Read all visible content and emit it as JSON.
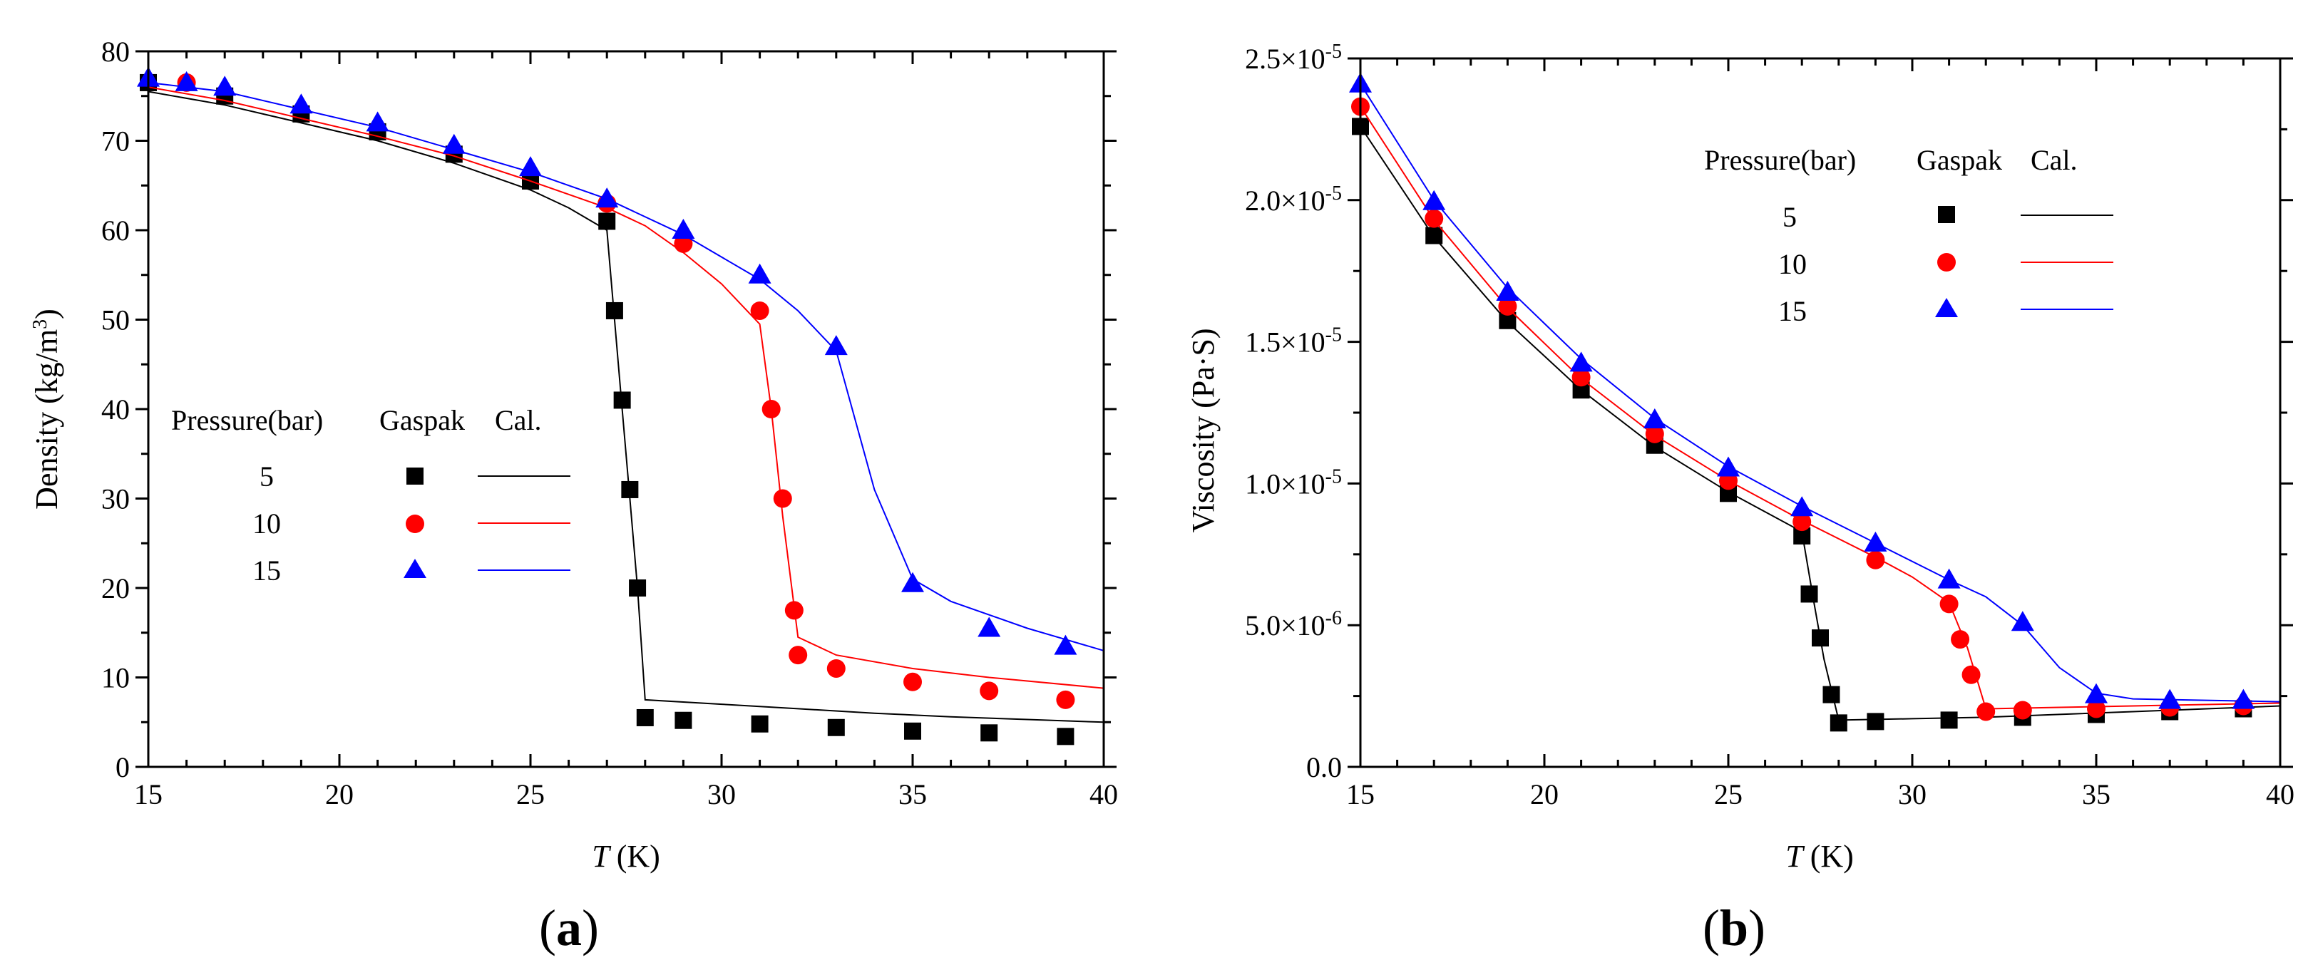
{
  "chart_data": [
    {
      "panel_label": "a",
      "type": "scatter+line",
      "xlabel": "(K)",
      "xlabel_italic": "T",
      "ylabel": "Density (kg/m",
      "ylabel_sup": "3",
      "ylabel_close": ")",
      "xlim": [
        15,
        40
      ],
      "ylim": [
        0,
        80
      ],
      "x_ticks": [
        "15",
        "20",
        "25",
        "30",
        "35",
        "40"
      ],
      "x_tick_values": [
        15,
        20,
        25,
        30,
        35,
        40
      ],
      "y_ticks": [
        "0",
        "10",
        "20",
        "30",
        "40",
        "50",
        "60",
        "70",
        "80"
      ],
      "y_tick_values": [
        0,
        10,
        20,
        30,
        40,
        50,
        60,
        70,
        80
      ],
      "legend": {
        "header_pressure": "Pressure(bar)",
        "header_gaspak": "Gaspak",
        "header_cal": "Cal.",
        "entries": [
          "5",
          "10",
          "15"
        ]
      },
      "series": [
        {
          "name": "5",
          "color": "#000000",
          "marker": "square",
          "points_x": [
            15,
            17,
            19,
            21,
            23,
            25,
            27,
            27.2,
            27.4,
            27.6,
            27.8,
            28,
            29,
            31,
            33,
            35,
            37,
            39
          ],
          "points_y": [
            76.5,
            75,
            73,
            71,
            68.5,
            65.5,
            61,
            51,
            41,
            31,
            20,
            5.5,
            5.2,
            4.8,
            4.4,
            4.0,
            3.8,
            3.4
          ],
          "line_x": [
            15,
            17,
            19,
            21,
            23,
            25,
            26,
            27,
            27.2,
            27.4,
            27.6,
            27.8,
            28,
            30,
            32,
            34,
            36,
            38,
            40
          ],
          "line_y": [
            75.5,
            74,
            72,
            70,
            67.5,
            64.5,
            62.5,
            60,
            50,
            40,
            30,
            20,
            7.5,
            7,
            6.5,
            6,
            5.6,
            5.3,
            5.0
          ]
        },
        {
          "name": "10",
          "color": "#ff0000",
          "marker": "circle",
          "points_x": [
            16,
            27,
            29,
            31,
            31.3,
            31.6,
            31.9,
            32,
            33,
            35,
            37,
            39
          ],
          "points_y": [
            76.5,
            63,
            58.5,
            51,
            40,
            30,
            17.5,
            12.5,
            11,
            9.5,
            8.5,
            7.5
          ],
          "line_x": [
            15,
            17,
            19,
            21,
            23,
            25,
            27,
            28,
            29,
            30,
            31,
            31.3,
            31.6,
            32,
            33,
            35,
            37,
            40
          ],
          "line_y": [
            76,
            74.5,
            72.5,
            70.5,
            68.3,
            65.5,
            62.5,
            60.5,
            57.5,
            54,
            49.5,
            40,
            28,
            14.5,
            12.5,
            11,
            10,
            8.8
          ]
        },
        {
          "name": "15",
          "color": "#0000ff",
          "marker": "triangle",
          "points_x": [
            15,
            16,
            17,
            19,
            21,
            23,
            25,
            27,
            29,
            31,
            33,
            35,
            37,
            39
          ],
          "points_y": [
            77,
            76.5,
            76,
            74,
            72,
            69.5,
            67,
            63.5,
            60,
            55,
            47,
            20.5,
            15.5,
            13.5
          ],
          "line_x": [
            15,
            17,
            19,
            21,
            23,
            25,
            27,
            29,
            31,
            32,
            33,
            34,
            35,
            36,
            38,
            40
          ],
          "line_y": [
            76.5,
            75.5,
            73.5,
            71.5,
            69,
            66.5,
            63.5,
            59.5,
            54.5,
            51,
            46.5,
            31,
            21,
            18.5,
            15.5,
            13
          ]
        }
      ]
    },
    {
      "panel_label": "b",
      "type": "scatter+line",
      "xlabel": "(K)",
      "xlabel_italic": "T",
      "ylabel": "Viscosity (Pa·S)",
      "xlim": [
        15,
        40
      ],
      "ylim": [
        0,
        2.5e-05
      ],
      "x_ticks": [
        "15",
        "20",
        "25",
        "30",
        "35",
        "40"
      ],
      "x_tick_values": [
        15,
        20,
        25,
        30,
        35,
        40
      ],
      "y_tick_values": [
        0,
        5e-06,
        1e-05,
        1.5e-05,
        2e-05,
        2.5e-05
      ],
      "y_ticks": [
        {
          "mant": "0.0",
          "exp": ""
        },
        {
          "mant": "5.0×10",
          "exp": "-6"
        },
        {
          "mant": "1.0×10",
          "exp": "-5"
        },
        {
          "mant": "1.5×10",
          "exp": "-5"
        },
        {
          "mant": "2.0×10",
          "exp": "-5"
        },
        {
          "mant": "2.5×10",
          "exp": "-5"
        }
      ],
      "legend": {
        "header_pressure": "Pressure(bar)",
        "header_gaspak": "Gaspak",
        "header_cal": "Cal.",
        "entries": [
          "5",
          "10",
          "15"
        ]
      },
      "series": [
        {
          "name": "5",
          "color": "#000000",
          "marker": "square",
          "points_x": [
            15,
            17,
            19,
            21,
            23,
            25,
            27,
            27.2,
            27.5,
            27.8,
            28,
            29,
            31,
            33,
            35,
            37,
            39
          ],
          "points_y": [
            2.26e-05,
            1.875e-05,
            1.575e-05,
            1.33e-05,
            1.135e-05,
            9.65e-06,
            8.15e-06,
            6.1e-06,
            4.55e-06,
            2.55e-06,
            1.55e-06,
            1.6e-06,
            1.65e-06,
            1.75e-06,
            1.85e-06,
            1.95e-06,
            2.05e-06
          ],
          "line_x": [
            15,
            17,
            19,
            21,
            23,
            25,
            27,
            27.3,
            27.6,
            28,
            30,
            32,
            34,
            36,
            38,
            40
          ],
          "line_y": [
            2.26e-05,
            1.87e-05,
            1.57e-05,
            1.33e-05,
            1.13e-05,
            9.7e-06,
            8.3e-06,
            6e-06,
            3.8e-06,
            1.65e-06,
            1.7e-06,
            1.75e-06,
            1.85e-06,
            1.95e-06,
            2.05e-06,
            2.15e-06
          ]
        },
        {
          "name": "10",
          "color": "#ff0000",
          "marker": "circle",
          "points_x": [
            15,
            17,
            19,
            21,
            23,
            25,
            27,
            29,
            31,
            31.3,
            31.6,
            32,
            33,
            35,
            37,
            39
          ],
          "points_y": [
            2.33e-05,
            1.935e-05,
            1.625e-05,
            1.375e-05,
            1.175e-05,
            1.01e-05,
            8.65e-06,
            7.3e-06,
            5.75e-06,
            4.5e-06,
            3.25e-06,
            1.95e-06,
            2e-06,
            2.05e-06,
            2.1e-06,
            2.15e-06
          ],
          "line_x": [
            15,
            17,
            19,
            21,
            23,
            25,
            27,
            29,
            30,
            31,
            31.5,
            32,
            34,
            36,
            38,
            40
          ],
          "line_y": [
            2.33e-05,
            1.93e-05,
            1.62e-05,
            1.37e-05,
            1.17e-05,
            1.01e-05,
            8.7e-06,
            7.4e-06,
            6.7e-06,
            5.8e-06,
            4.2e-06,
            2.05e-06,
            2.1e-06,
            2.15e-06,
            2.2e-06,
            2.25e-06
          ]
        },
        {
          "name": "15",
          "color": "#0000ff",
          "marker": "triangle",
          "points_x": [
            15,
            17,
            19,
            21,
            23,
            25,
            27,
            29,
            31,
            33,
            35,
            37,
            39
          ],
          "points_y": [
            2.41e-05,
            1.995e-05,
            1.675e-05,
            1.425e-05,
            1.225e-05,
            1.055e-05,
            9.15e-06,
            7.9e-06,
            6.6e-06,
            5.1e-06,
            2.55e-06,
            2.35e-06,
            2.35e-06
          ],
          "line_x": [
            15,
            17,
            19,
            21,
            23,
            25,
            27,
            29,
            31,
            32,
            33,
            34,
            35,
            36,
            38,
            40
          ],
          "line_y": [
            2.41e-05,
            2e-05,
            1.69e-05,
            1.44e-05,
            1.23e-05,
            1.06e-05,
            9.2e-06,
            7.9e-06,
            6.6e-06,
            6e-06,
            5e-06,
            3.5e-06,
            2.6e-06,
            2.4e-06,
            2.35e-06,
            2.3e-06
          ]
        }
      ]
    }
  ]
}
